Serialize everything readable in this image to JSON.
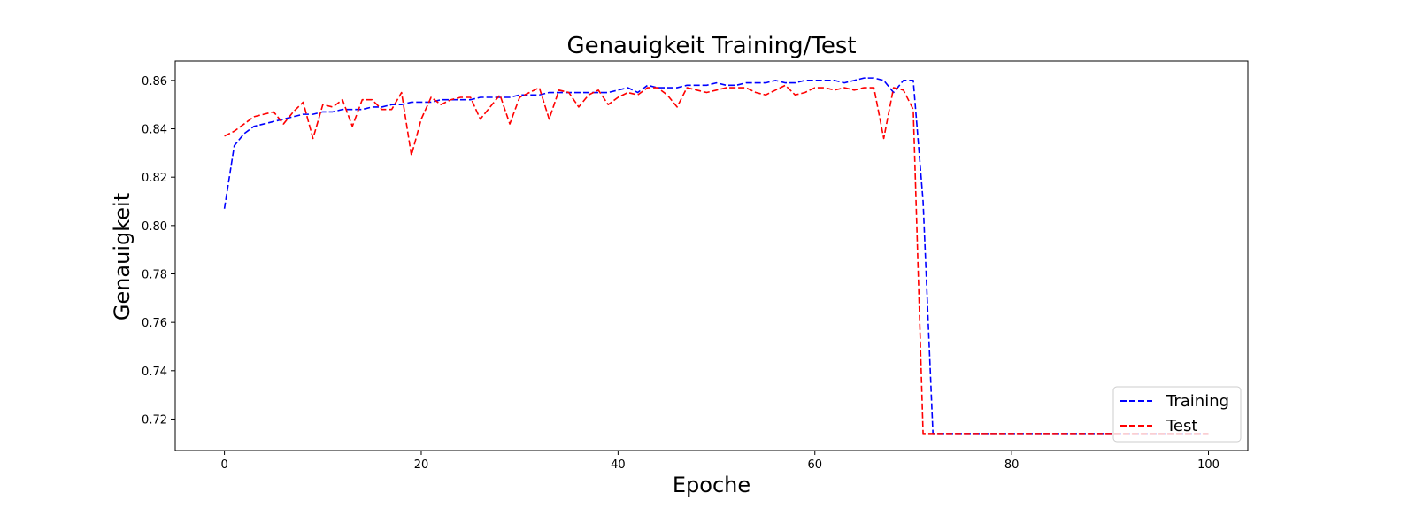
{
  "chart_data": {
    "type": "line",
    "title": "Genauigkeit Training/Test",
    "xlabel": "Epoche",
    "ylabel": "Genauigkeit",
    "xlim": [
      -5,
      104
    ],
    "ylim": [
      0.707,
      0.868
    ],
    "xticks": [
      0,
      20,
      40,
      60,
      80,
      100
    ],
    "yticks": [
      0.72,
      0.74,
      0.76,
      0.78,
      0.8,
      0.82,
      0.84,
      0.86
    ],
    "ytick_labels": [
      "0.72",
      "0.74",
      "0.76",
      "0.78",
      "0.80",
      "0.82",
      "0.84",
      "0.86"
    ],
    "grid": false,
    "legend_position": "bottom-right",
    "x": [
      0,
      1,
      2,
      3,
      4,
      5,
      6,
      7,
      8,
      9,
      10,
      11,
      12,
      13,
      14,
      15,
      16,
      17,
      18,
      19,
      20,
      21,
      22,
      23,
      24,
      25,
      26,
      27,
      28,
      29,
      30,
      31,
      32,
      33,
      34,
      35,
      36,
      37,
      38,
      39,
      40,
      41,
      42,
      43,
      44,
      45,
      46,
      47,
      48,
      49,
      50,
      51,
      52,
      53,
      54,
      55,
      56,
      57,
      58,
      59,
      60,
      61,
      62,
      63,
      64,
      65,
      66,
      67,
      68,
      69,
      70,
      71,
      72,
      73,
      74,
      75,
      76,
      77,
      78,
      79,
      80,
      81,
      82,
      83,
      84,
      85,
      86,
      87,
      88,
      89,
      90,
      91,
      92,
      93,
      94,
      95,
      96,
      97,
      98,
      99,
      100
    ],
    "series": [
      {
        "name": "Training",
        "color": "#0000ff",
        "values": [
          0.807,
          0.833,
          0.838,
          0.841,
          0.842,
          0.843,
          0.844,
          0.845,
          0.846,
          0.846,
          0.847,
          0.847,
          0.848,
          0.848,
          0.848,
          0.849,
          0.849,
          0.85,
          0.85,
          0.851,
          0.851,
          0.851,
          0.852,
          0.852,
          0.852,
          0.852,
          0.853,
          0.853,
          0.853,
          0.853,
          0.854,
          0.854,
          0.854,
          0.855,
          0.855,
          0.855,
          0.855,
          0.855,
          0.855,
          0.855,
          0.856,
          0.857,
          0.855,
          0.858,
          0.857,
          0.857,
          0.857,
          0.858,
          0.858,
          0.858,
          0.859,
          0.858,
          0.858,
          0.859,
          0.859,
          0.859,
          0.86,
          0.859,
          0.859,
          0.86,
          0.86,
          0.86,
          0.86,
          0.859,
          0.86,
          0.861,
          0.861,
          0.86,
          0.855,
          0.86,
          0.86,
          0.81,
          0.714,
          0.714,
          0.714,
          0.714,
          0.714,
          0.714,
          0.714,
          0.714,
          0.714,
          0.714,
          0.714,
          0.714,
          0.714,
          0.714,
          0.714,
          0.714,
          0.714,
          0.714,
          0.714,
          0.714,
          0.714,
          0.714,
          0.714,
          0.714,
          0.714,
          0.714,
          0.714,
          0.714,
          0.714
        ]
      },
      {
        "name": "Test",
        "color": "#ff0000",
        "values": [
          0.837,
          0.839,
          0.842,
          0.845,
          0.846,
          0.847,
          0.842,
          0.847,
          0.851,
          0.836,
          0.85,
          0.849,
          0.852,
          0.841,
          0.852,
          0.852,
          0.848,
          0.848,
          0.855,
          0.829,
          0.844,
          0.853,
          0.85,
          0.852,
          0.853,
          0.853,
          0.844,
          0.849,
          0.854,
          0.842,
          0.853,
          0.855,
          0.857,
          0.844,
          0.856,
          0.855,
          0.849,
          0.854,
          0.856,
          0.85,
          0.853,
          0.855,
          0.854,
          0.857,
          0.857,
          0.854,
          0.849,
          0.857,
          0.856,
          0.855,
          0.856,
          0.857,
          0.857,
          0.857,
          0.855,
          0.854,
          0.856,
          0.858,
          0.854,
          0.855,
          0.857,
          0.857,
          0.856,
          0.857,
          0.856,
          0.857,
          0.857,
          0.836,
          0.857,
          0.856,
          0.848,
          0.714,
          0.714,
          0.714,
          0.714,
          0.714,
          0.714,
          0.714,
          0.714,
          0.714,
          0.714,
          0.714,
          0.714,
          0.714,
          0.714,
          0.714,
          0.714,
          0.714,
          0.714,
          0.714,
          0.714,
          0.714,
          0.714,
          0.714,
          0.714,
          0.714,
          0.714,
          0.714,
          0.714,
          0.714,
          0.714
        ]
      }
    ]
  }
}
